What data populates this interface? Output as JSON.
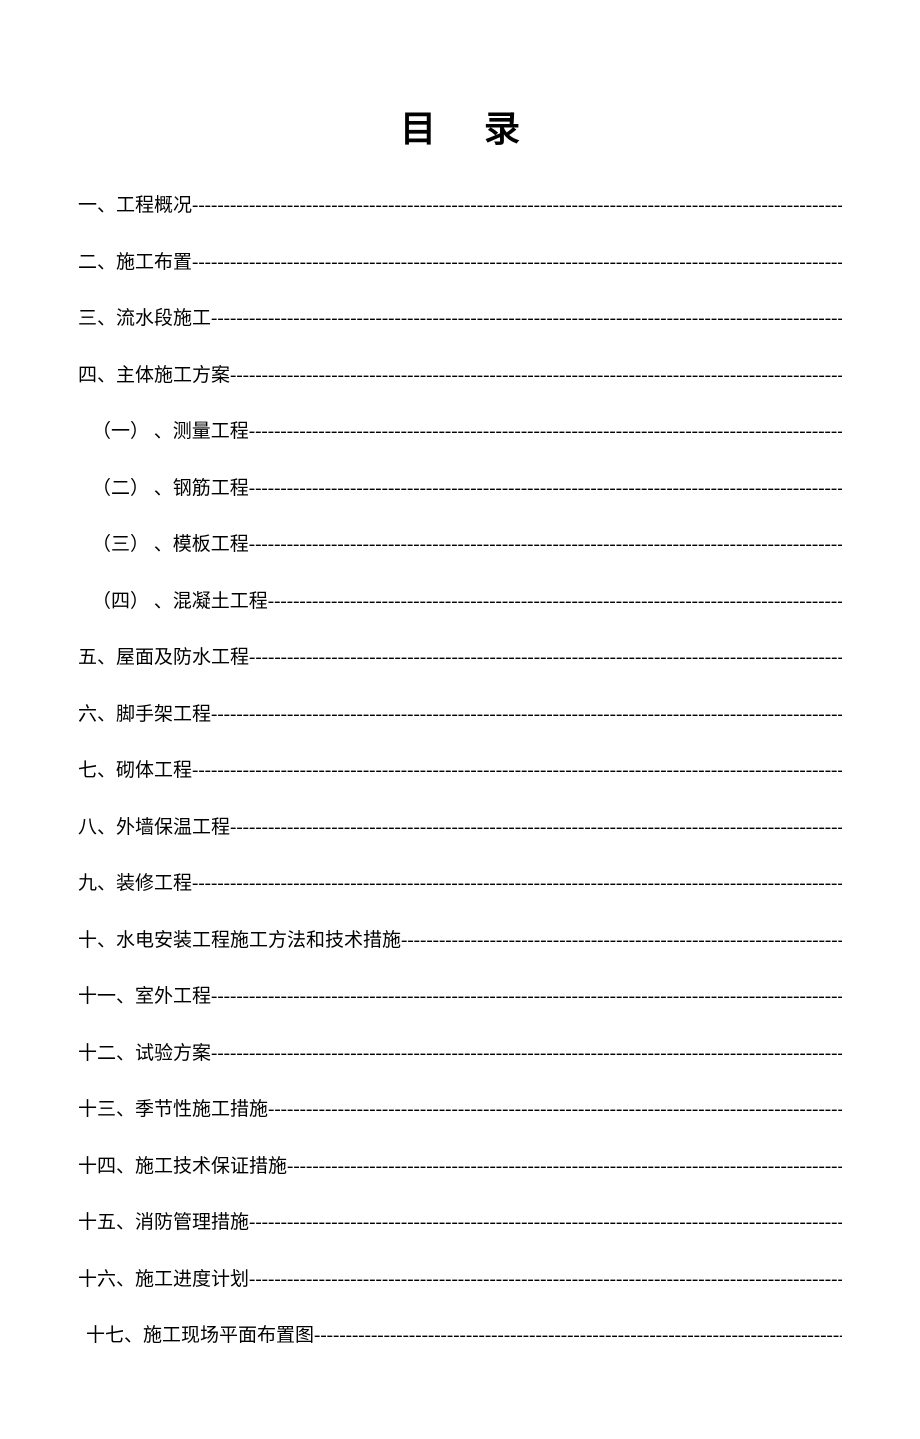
{
  "title": "目录",
  "toc": {
    "items": [
      {
        "label": "一、工程概况",
        "indent": ""
      },
      {
        "label": "二、施工布置",
        "indent": ""
      },
      {
        "label": "三、流水段施工",
        "indent": ""
      },
      {
        "label": "四、主体施工方案",
        "indent": ""
      },
      {
        "label": "（一） 、测量工程",
        "indent": "sub"
      },
      {
        "label": "（二） 、钢筋工程",
        "indent": "sub"
      },
      {
        "label": "（三） 、模板工程",
        "indent": "sub"
      },
      {
        "label": "（四） 、混凝土工程",
        "indent": "sub"
      },
      {
        "label": "五、屋面及防水工程",
        "indent": ""
      },
      {
        "label": "六、脚手架工程",
        "indent": ""
      },
      {
        "label": "七、砌体工程",
        "indent": ""
      },
      {
        "label": "八、外墙保温工程",
        "indent": ""
      },
      {
        "label": "九、装修工程",
        "indent": ""
      },
      {
        "label": "十、水电安装工程施工方法和技术措施",
        "indent": ""
      },
      {
        "label": "十一、室外工程",
        "indent": ""
      },
      {
        "label": "十二、试验方案",
        "indent": ""
      },
      {
        "label": "十三、季节性施工措施",
        "indent": ""
      },
      {
        "label": "十四、施工技术保证措施",
        "indent": ""
      },
      {
        "label": "十五、消防管理措施",
        "indent": ""
      },
      {
        "label": "十六、施工进度计划",
        "indent": ""
      },
      {
        "label": "十七、施工现场平面布置图",
        "indent": "last"
      }
    ]
  },
  "dash_fill": "------------------------------------------------------------------------------------------------------------------------",
  "colors": {
    "background": "#ffffff",
    "text": "#000000"
  },
  "typography": {
    "title_fontsize": 36,
    "body_fontsize": 19,
    "font_family": "SimSun"
  }
}
